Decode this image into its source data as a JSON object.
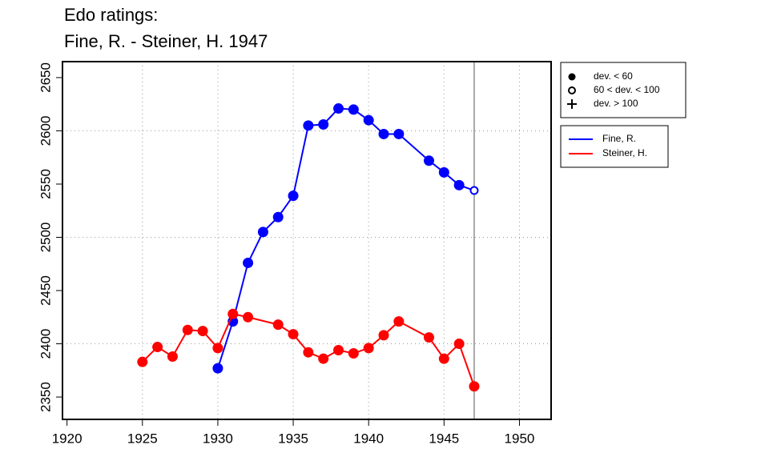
{
  "chart_data": {
    "type": "line",
    "title": "Edo ratings:",
    "subtitle": "Fine, R. - Steiner, H. 1947",
    "xlim": [
      1919.7,
      1952.1
    ],
    "ylim": [
      2329,
      2665
    ],
    "xticks": [
      1920,
      1925,
      1930,
      1935,
      1940,
      1945,
      1950
    ],
    "yticks": [
      2350,
      2400,
      2450,
      2500,
      2550,
      2600,
      2650
    ],
    "xgrid": [
      1925,
      1930,
      1935,
      1940,
      1945,
      1950
    ],
    "ygrid": [
      2400,
      2500,
      2600
    ],
    "vline": 1947,
    "marker_legend": [
      "dev. < 60",
      "60 < dev. < 100",
      "dev. > 100"
    ],
    "series": [
      {
        "name": "Fine, R.",
        "color": "#0000ff",
        "x": [
          1930,
          1931,
          1932,
          1933,
          1934,
          1935,
          1936,
          1937,
          1938,
          1939,
          1940,
          1941,
          1942,
          1944,
          1945,
          1946,
          1947
        ],
        "values": [
          2377,
          2421,
          2476,
          2505,
          2519,
          2539,
          2605,
          2606,
          2621,
          2620,
          2610,
          2597,
          2597,
          2572,
          2561,
          2549,
          2544
        ],
        "markers": [
          "solid",
          "solid",
          "solid",
          "solid",
          "solid",
          "solid",
          "solid",
          "solid",
          "solid",
          "solid",
          "solid",
          "solid",
          "solid",
          "solid",
          "solid",
          "solid",
          "open"
        ]
      },
      {
        "name": "Steiner, H.",
        "color": "#ff0000",
        "x": [
          1925,
          1926,
          1927,
          1928,
          1929,
          1930,
          1931,
          1932,
          1934,
          1935,
          1936,
          1937,
          1938,
          1939,
          1940,
          1941,
          1942,
          1944,
          1945,
          1946,
          1947
        ],
        "values": [
          2383,
          2397,
          2388,
          2413,
          2412,
          2396,
          2428,
          2425,
          2418,
          2409,
          2392,
          2386,
          2394,
          2391,
          2396,
          2408,
          2421,
          2406,
          2386,
          2400,
          2360
        ],
        "markers": [
          "solid",
          "solid",
          "solid",
          "solid",
          "solid",
          "solid",
          "solid",
          "solid",
          "solid",
          "solid",
          "solid",
          "solid",
          "solid",
          "solid",
          "solid",
          "solid",
          "solid",
          "solid",
          "solid",
          "solid",
          "solid"
        ]
      }
    ]
  }
}
